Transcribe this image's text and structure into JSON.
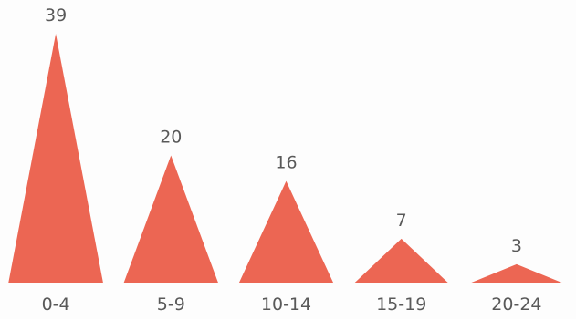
{
  "chart_data": {
    "type": "bar",
    "mark_shape": "triangle",
    "categories": [
      "0-4",
      "5-9",
      "10-14",
      "15-19",
      "20-24"
    ],
    "values": [
      39,
      20,
      16,
      7,
      3
    ],
    "title": "",
    "xlabel": "",
    "ylabel": "",
    "ylim": [
      0,
      39
    ],
    "grid": false,
    "legend": "none",
    "colors": {
      "bar": "#ec6653",
      "label": "#595959",
      "background": "#fdfdfd"
    }
  }
}
